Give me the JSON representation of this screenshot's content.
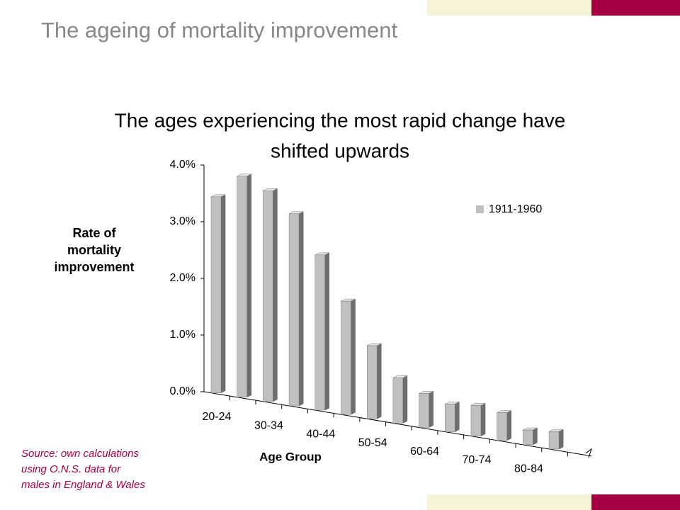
{
  "slide_title": "The ageing of mortality improvement",
  "source_lines": [
    "Source: own calculations",
    "using O.N.S. data for",
    "males in England & Wales"
  ],
  "chart_data": {
    "type": "bar",
    "title": [
      "The ages experiencing the most rapid change have",
      "shifted upwards"
    ],
    "y_label": [
      "Rate of",
      "mortality",
      "improvement"
    ],
    "x_label": "Age Group",
    "categories": [
      "20-24",
      null,
      "30-34",
      null,
      "40-44",
      null,
      "50-54",
      null,
      "60-64",
      null,
      "70-74",
      null,
      "80-84",
      null
    ],
    "series": [
      {
        "name": "1911-1960",
        "color": "#c0c0c0",
        "values": [
          3.46,
          3.9,
          3.72,
          3.39,
          2.74,
          2.0,
          1.29,
          0.8,
          0.6,
          0.49,
          0.54,
          0.49,
          0.26,
          0.31
        ]
      }
    ],
    "ylim": [
      0,
      4
    ],
    "yticks": [
      {
        "value": 0,
        "label": "0.0%"
      },
      {
        "value": 1,
        "label": "1.0%"
      },
      {
        "value": 2,
        "label": "2.0%"
      },
      {
        "value": 3,
        "label": "3.0%"
      },
      {
        "value": 4,
        "label": "4.0%"
      }
    ],
    "legend": "upper-right"
  }
}
